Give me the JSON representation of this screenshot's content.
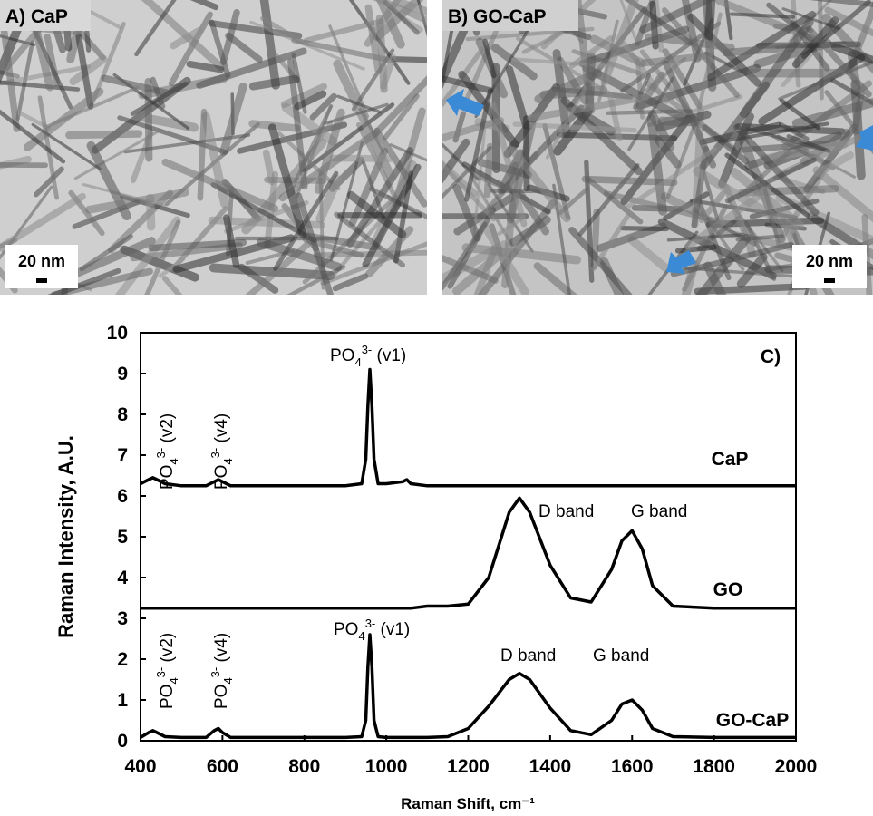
{
  "panels": [
    {
      "label": "A) CaP",
      "scale": "20 nm"
    },
    {
      "label": "B) GO-CaP",
      "scale": "20 nm"
    }
  ],
  "chart_data": {
    "type": "line",
    "panel_label": "C)",
    "x_label": "Raman Shift, cm⁻¹",
    "y_label": "Raman Intensity, A.U.",
    "xlim": [
      400,
      2000
    ],
    "ylim": [
      0,
      10
    ],
    "xticks": [
      400,
      600,
      800,
      1000,
      1200,
      1400,
      1600,
      1800,
      2000
    ],
    "yticks": [
      0,
      1,
      2,
      3,
      4,
      5,
      6,
      7,
      8,
      9,
      10
    ],
    "x": [
      400,
      420,
      430,
      440,
      460,
      500,
      560,
      580,
      590,
      600,
      620,
      700,
      800,
      900,
      940,
      950,
      955,
      960,
      965,
      970,
      980,
      1000,
      1040,
      1050,
      1060,
      1100,
      1150,
      1200,
      1250,
      1300,
      1325,
      1350,
      1400,
      1450,
      1500,
      1550,
      1575,
      1600,
      1625,
      1650,
      1700,
      1800,
      1900,
      2000
    ],
    "series": [
      {
        "name": "CaP",
        "color": "#000000",
        "values": [
          6.3,
          6.4,
          6.45,
          6.4,
          6.3,
          6.25,
          6.25,
          6.35,
          6.4,
          6.35,
          6.25,
          6.25,
          6.25,
          6.25,
          6.3,
          6.9,
          8.2,
          9.1,
          8.2,
          6.9,
          6.3,
          6.3,
          6.35,
          6.4,
          6.3,
          6.25,
          6.25,
          6.25,
          6.25,
          6.25,
          6.25,
          6.25,
          6.25,
          6.25,
          6.25,
          6.25,
          6.25,
          6.25,
          6.25,
          6.25,
          6.25,
          6.25,
          6.25,
          6.25
        ]
      },
      {
        "name": "GO",
        "color": "#000000",
        "values": [
          3.25,
          3.25,
          3.25,
          3.25,
          3.25,
          3.25,
          3.25,
          3.25,
          3.25,
          3.25,
          3.25,
          3.25,
          3.25,
          3.25,
          3.25,
          3.25,
          3.25,
          3.25,
          3.25,
          3.25,
          3.25,
          3.25,
          3.25,
          3.25,
          3.25,
          3.3,
          3.3,
          3.35,
          4.0,
          5.6,
          5.95,
          5.6,
          4.3,
          3.5,
          3.4,
          4.2,
          4.9,
          5.15,
          4.7,
          3.8,
          3.3,
          3.25,
          3.25,
          3.25
        ]
      },
      {
        "name": "GO-CaP",
        "color": "#000000",
        "values": [
          0.08,
          0.2,
          0.25,
          0.2,
          0.1,
          0.08,
          0.08,
          0.25,
          0.3,
          0.2,
          0.08,
          0.08,
          0.08,
          0.08,
          0.1,
          0.5,
          1.8,
          2.6,
          1.8,
          0.5,
          0.1,
          0.08,
          0.08,
          0.08,
          0.08,
          0.08,
          0.1,
          0.3,
          0.85,
          1.5,
          1.65,
          1.5,
          0.8,
          0.25,
          0.15,
          0.5,
          0.9,
          1.0,
          0.75,
          0.3,
          0.1,
          0.08,
          0.08,
          0.08
        ]
      }
    ],
    "annotations": [
      {
        "base": "PO",
        "sub": "4",
        "sup": "3-",
        "tail": " (v1)"
      },
      {
        "base": "PO",
        "sub": "4",
        "sup": "3-",
        "tail": " (v2)"
      },
      {
        "base": "PO",
        "sub": "4",
        "sup": "3-",
        "tail": " (v4)"
      },
      {
        "base": "D band"
      },
      {
        "base": "G band"
      },
      {
        "base": "PO",
        "sub": "4",
        "sup": "3-",
        "tail": " (v1)"
      },
      {
        "base": "PO",
        "sub": "4",
        "sup": "3-",
        "tail": " (v2)"
      },
      {
        "base": "PO",
        "sub": "4",
        "sup": "3-",
        "tail": " (v4)"
      },
      {
        "base": "D band"
      },
      {
        "base": "G band"
      }
    ]
  }
}
